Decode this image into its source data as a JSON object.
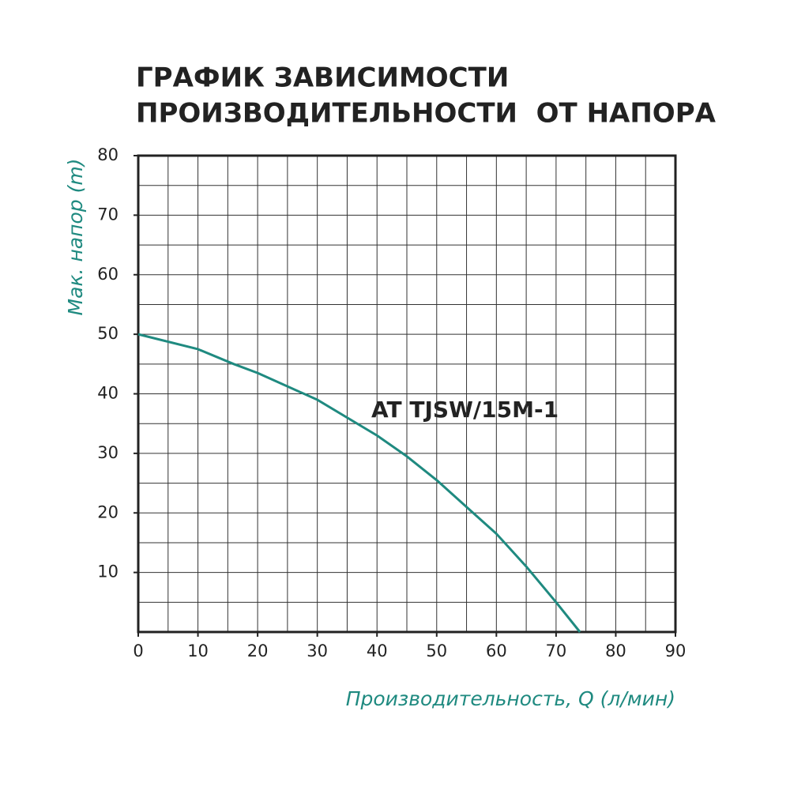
{
  "chart_data": {
    "type": "line",
    "title": [
      "ГРАФИК ЗАВИСИМОСТИ",
      "ПРОИЗВОДИТЕЛЬНОСТИ  ОТ НАПОРА"
    ],
    "x_label": "Производительность, Q (л/мин)",
    "y_label": "Мак. напор (m)",
    "annotation": "AT TJSW/15M-1",
    "x": [
      0,
      10,
      16,
      20,
      30,
      40,
      45,
      50,
      55,
      60,
      65,
      70,
      74
    ],
    "series": [
      {
        "name": "AT TJSW/15M-1",
        "color": "#1f8a80",
        "values": [
          50,
          47.5,
          45,
          43.5,
          39,
          33,
          29.5,
          25.5,
          21,
          16.5,
          11,
          5,
          0
        ]
      }
    ],
    "xlim": [
      0,
      90
    ],
    "ylim": [
      0,
      80
    ],
    "xticks": [
      0,
      10,
      20,
      30,
      40,
      50,
      60,
      70,
      80,
      90
    ],
    "yticks": [
      10,
      20,
      30,
      40,
      50,
      60,
      70,
      80
    ],
    "grid": true,
    "minor_grid_step": 5
  }
}
